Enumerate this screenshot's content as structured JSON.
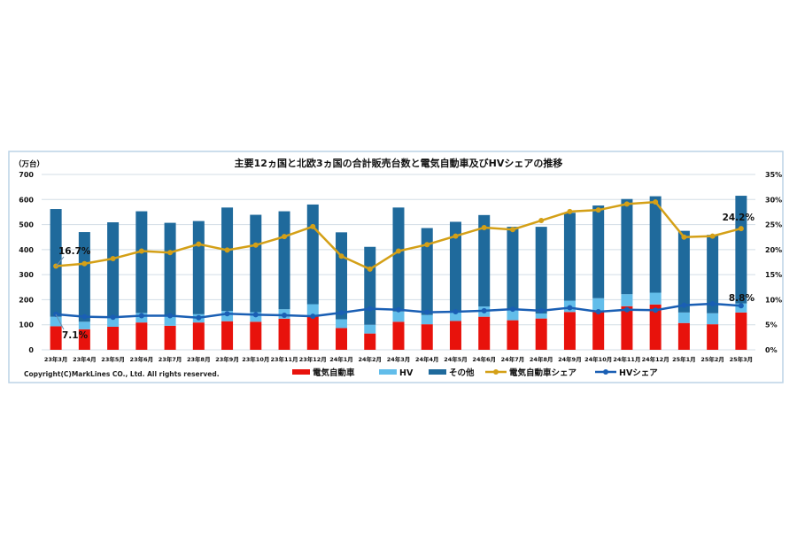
{
  "chart_data": {
    "type": "bar",
    "stacked": true,
    "title": "主要12ヵ国と北欧3ヵ国の合計販売台数と電気自動車及びHVシェアの推移",
    "ylabel": "（万台）",
    "ylim": [
      0,
      700
    ],
    "yticks": [
      "0",
      "100",
      "200",
      "300",
      "400",
      "500",
      "600",
      "700"
    ],
    "y2lim": [
      0,
      35
    ],
    "y2ticks": [
      "0%",
      "5%",
      "10%",
      "15%",
      "20%",
      "25%",
      "30%",
      "35%"
    ],
    "grid": true,
    "legend_position": "bottom",
    "copyright": "Copyright(C)MarkLines CO., Ltd. All rights reserved.",
    "categories": [
      "23年3月",
      "23年4月",
      "23年5月",
      "23年6月",
      "23年7月",
      "23年8月",
      "23年9月",
      "23年10月",
      "23年11月",
      "23年12月",
      "24年1月",
      "24年2月",
      "24年3月",
      "24年4月",
      "24年5月",
      "24年6月",
      "24年7月",
      "24年8月",
      "24年9月",
      "24年10月",
      "24年11月",
      "24年12月",
      "25年1月",
      "25年2月",
      "25年3月"
    ],
    "series": [
      {
        "name": "電気自動車",
        "kind": "bar",
        "color": "#e8120c",
        "values": [
          94,
          82,
          92,
          109,
          96,
          109,
          114,
          112,
          124,
          133,
          87,
          65,
          112,
          102,
          115,
          132,
          118,
          125,
          151,
          153,
          174,
          181,
          107,
          102,
          149
        ]
      },
      {
        "name": "HV",
        "kind": "bar",
        "color": "#62bdea",
        "values": [
          38,
          30,
          35,
          38,
          38,
          33,
          41,
          38,
          38,
          49,
          35,
          35,
          41,
          37,
          34,
          41,
          41,
          20,
          45,
          53,
          48,
          47,
          42,
          44,
          36
        ]
      },
      {
        "name": "その他",
        "kind": "bar",
        "color": "#1f6a9c",
        "values": [
          430,
          358,
          382,
          406,
          373,
          372,
          413,
          389,
          391,
          398,
          347,
          311,
          415,
          347,
          362,
          365,
          332,
          346,
          351,
          370,
          380,
          385,
          326,
          313,
          430
        ]
      },
      {
        "name": "電気自動車シェア",
        "kind": "line",
        "axis": "right",
        "color": "#d4a017",
        "values": [
          16.7,
          17.2,
          18.2,
          19.7,
          19.4,
          21.1,
          19.9,
          20.9,
          22.6,
          24.6,
          18.7,
          16.1,
          19.7,
          21.0,
          22.7,
          24.4,
          24.0,
          25.8,
          27.6,
          27.9,
          29.1,
          29.5,
          22.5,
          22.7,
          24.2
        ]
      },
      {
        "name": "HVシェア",
        "kind": "line",
        "axis": "right",
        "color": "#1a5fb4",
        "values": [
          7.1,
          6.6,
          6.5,
          6.8,
          6.8,
          6.4,
          7.2,
          7.0,
          6.9,
          6.7,
          7.4,
          8.2,
          8.0,
          7.5,
          7.6,
          7.8,
          8.1,
          7.8,
          8.4,
          7.6,
          8.0,
          7.9,
          8.9,
          9.2,
          8.8
        ]
      }
    ],
    "annotations": [
      {
        "text": "16.7%",
        "series": "電気自動車シェア",
        "category": "23年3月"
      },
      {
        "text": "7.1%",
        "series": "HVシェア",
        "category": "23年3月"
      },
      {
        "text": "24.2%",
        "series": "電気自動車シェア",
        "category": "25年3月"
      },
      {
        "text": "8.8%",
        "series": "HVシェア",
        "category": "25年3月"
      }
    ]
  }
}
